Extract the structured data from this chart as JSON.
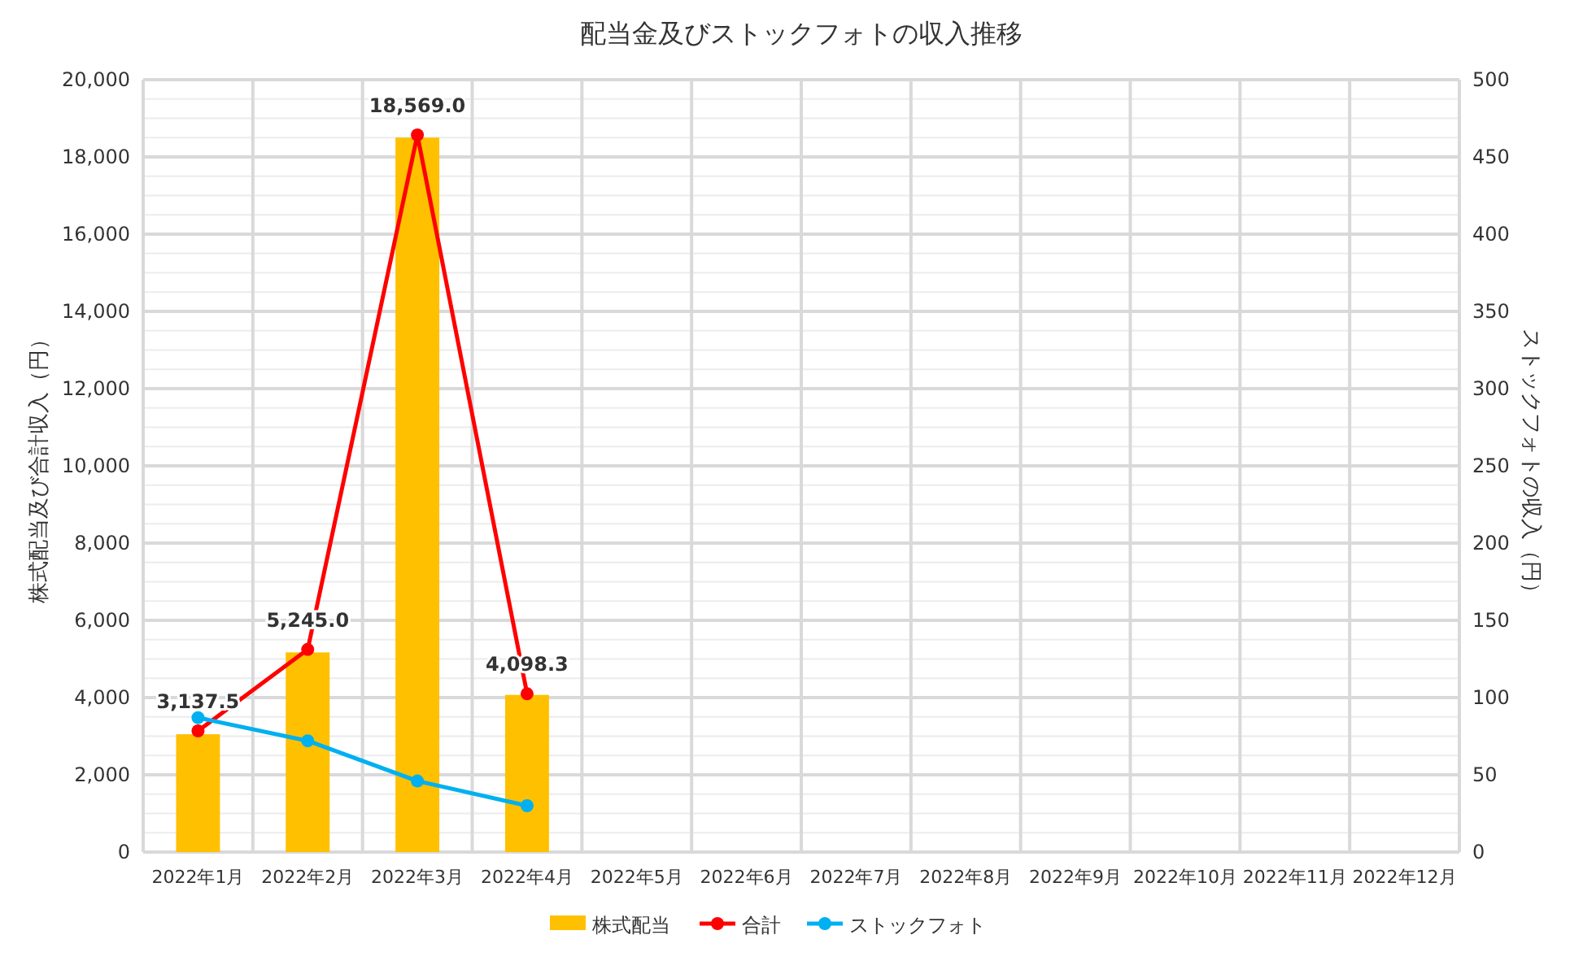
{
  "chart_data": {
    "type": "bar",
    "title": "配当金及びストックフォトの収入推移",
    "ylabel": "株式配当及び合計収入（円）",
    "y2label": "ストックフォトの収入（円）",
    "categories": [
      "2022年1月",
      "2022年2月",
      "2022年3月",
      "2022年4月",
      "2022年5月",
      "2022年6月",
      "2022年7月",
      "2022年8月",
      "2022年9月",
      "2022年10月",
      "2022年11月",
      "2022年12月"
    ],
    "series": [
      {
        "name": "株式配当",
        "color": "#ffc000",
        "values": [
          3050,
          5170,
          18500,
          4070,
          null,
          null,
          null,
          null,
          null,
          null,
          null,
          null
        ]
      },
      {
        "name": "合計",
        "type": "line",
        "color": "#ff0000",
        "marker": "circle",
        "values": [
          3137.5,
          5245.0,
          18569.0,
          4098.3,
          null,
          null,
          null,
          null,
          null,
          null,
          null,
          null
        ],
        "value_labels": [
          "3,137.5",
          "5,245.0",
          "18,569.0",
          "4,098.3",
          null,
          null,
          null,
          null,
          null,
          null,
          null,
          null
        ]
      },
      {
        "name": "ストックフォト",
        "type": "line",
        "axis": "y2",
        "color": "#00b0f0",
        "marker": "circle",
        "values": [
          87,
          72,
          46,
          30,
          null,
          null,
          null,
          null,
          null,
          null,
          null,
          null
        ]
      }
    ],
    "ylim": [
      0,
      20000
    ],
    "yticks": [
      0,
      {
        "value": 2000,
        "label": "2,000"
      },
      {
        "value": 4000,
        "label": "4,000"
      },
      {
        "value": 6000,
        "label": "6,000"
      },
      {
        "value": 8000,
        "label": "8,000"
      },
      {
        "value": 10000,
        "label": "10,000"
      },
      {
        "value": 12000,
        "label": "12,000"
      },
      {
        "value": 14000,
        "label": "14,000"
      },
      {
        "value": 16000,
        "label": "16,000"
      },
      {
        "value": 18000,
        "label": "18,000"
      },
      {
        "value": 20000,
        "label": "20,000"
      }
    ],
    "y2lim": [
      0,
      500
    ],
    "y2ticks": [
      0,
      50,
      100,
      150,
      200,
      250,
      300,
      350,
      400,
      450,
      500
    ],
    "grid": true,
    "legend": "bottom"
  }
}
